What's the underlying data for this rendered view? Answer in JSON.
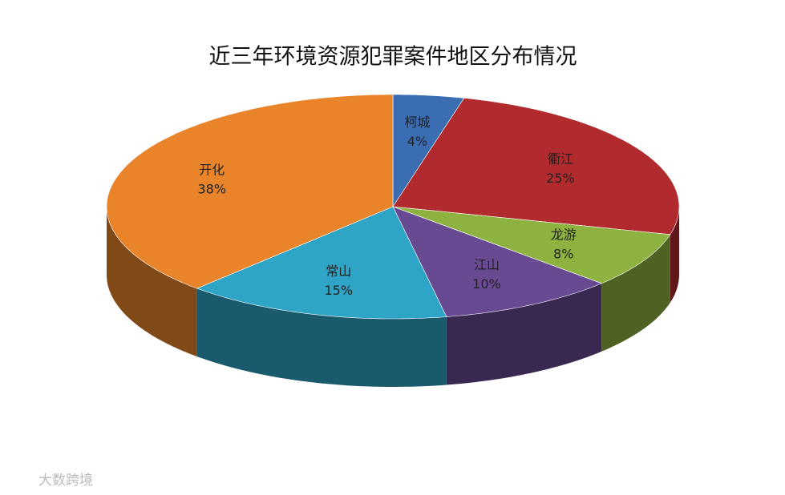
{
  "chart_data": {
    "type": "pie3d",
    "title": "近三年环境资源犯罪案件地区分布情况",
    "categories": [
      "柯城",
      "衢江",
      "龙游",
      "江山",
      "常山",
      "开化"
    ],
    "values": [
      4,
      25,
      8,
      10,
      15,
      38
    ],
    "value_labels": [
      "4%",
      "25%",
      "8%",
      "10%",
      "15%",
      "38%"
    ],
    "colors": [
      "#3b6db3",
      "#b12a2d",
      "#8db23f",
      "#684a93",
      "#2ea4c6",
      "#e9842b"
    ]
  },
  "watermark": "大数跨境"
}
